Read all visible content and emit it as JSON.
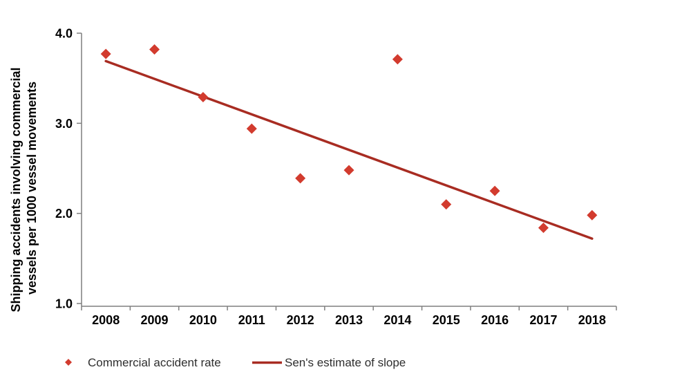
{
  "chart_data": {
    "type": "scatter",
    "title": "",
    "categories": [
      "2008",
      "2009",
      "2010",
      "2011",
      "2012",
      "2013",
      "2014",
      "2015",
      "2016",
      "2017",
      "2018"
    ],
    "series": [
      {
        "name": "Commercial accident rate",
        "type": "scatter",
        "marker": "diamond",
        "color": "#d23b2e",
        "values": [
          3.77,
          3.82,
          3.29,
          2.94,
          2.39,
          2.48,
          3.71,
          2.1,
          2.25,
          1.84,
          1.98
        ]
      },
      {
        "name": "Sen's estimate of slope",
        "type": "line",
        "color": "#a82c22",
        "start": {
          "x": "2008",
          "y": 3.69
        },
        "end": {
          "x": "2018",
          "y": 1.72
        }
      }
    ],
    "xlabel": "",
    "ylabel_line1": "Shipping accidents involving commercial",
    "ylabel_line2": "vessels per 1000 vessel movements",
    "ylim": [
      1.0,
      4.0
    ],
    "yticks": [
      1.0,
      2.0,
      3.0,
      4.0
    ],
    "ytick_labels": [
      "1.0",
      "2.0",
      "3.0",
      "4.0"
    ],
    "grid": false,
    "legend_position": "bottom-left",
    "axis_color": "#7f7f7f",
    "text_color": "#000000",
    "legend_text_color": "#2e2e2e"
  }
}
